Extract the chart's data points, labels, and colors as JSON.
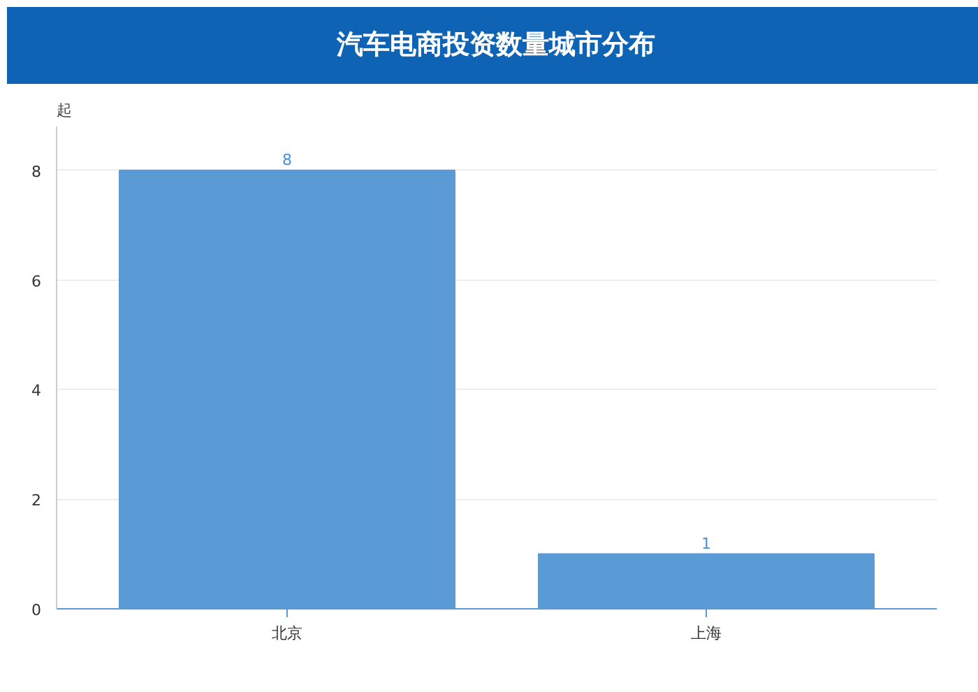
{
  "chart_data": {
    "type": "bar",
    "title": "汽车电商投资数量城市分布",
    "ylabel": "起",
    "categories": [
      "北京",
      "上海"
    ],
    "values": [
      8,
      1
    ],
    "color": "#5b9bd5",
    "ylim": [
      0,
      8.8
    ],
    "yticks": [
      0,
      2,
      4,
      6,
      8
    ],
    "grid": "y",
    "data_labels": true
  }
}
